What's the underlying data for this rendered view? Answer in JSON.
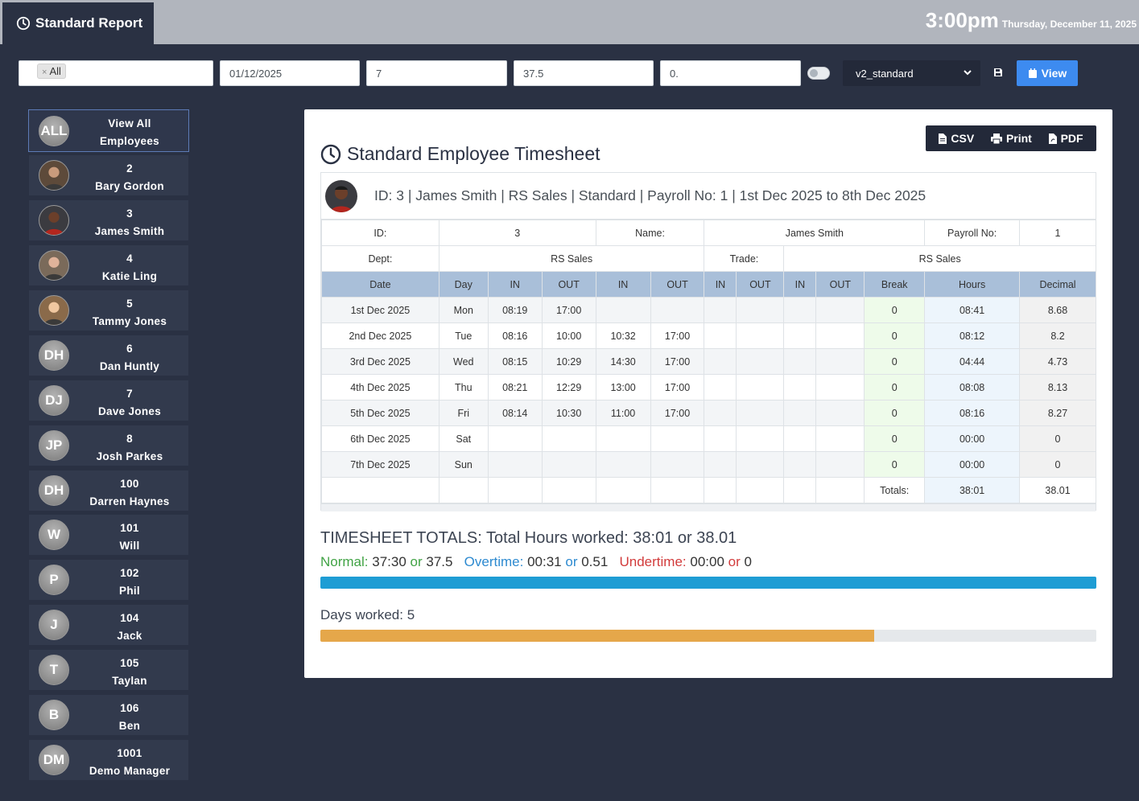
{
  "header": {
    "tab_title": "Standard Report",
    "time": "3:00pm",
    "date": "Thursday, December 11, 2025"
  },
  "filters": {
    "chip": "All",
    "date": "01/12/2025",
    "days": "7",
    "hours": "37.5",
    "field4": "0.",
    "template": "v2_standard",
    "view_label": "View"
  },
  "sidebar": {
    "items": [
      {
        "line1": "View All",
        "line2": "Employees",
        "avatar": "ALL"
      },
      {
        "line1": "2",
        "line2": "Bary Gordon",
        "avatar": ""
      },
      {
        "line1": "3",
        "line2": "James Smith",
        "avatar": ""
      },
      {
        "line1": "4",
        "line2": "Katie Ling",
        "avatar": ""
      },
      {
        "line1": "5",
        "line2": "Tammy Jones",
        "avatar": ""
      },
      {
        "line1": "6",
        "line2": "Dan Huntly",
        "avatar": "DH"
      },
      {
        "line1": "7",
        "line2": "Dave Jones",
        "avatar": "DJ"
      },
      {
        "line1": "8",
        "line2": "Josh Parkes",
        "avatar": "JP"
      },
      {
        "line1": "100",
        "line2": "Darren Haynes",
        "avatar": "DH"
      },
      {
        "line1": "101",
        "line2": "Will",
        "avatar": "W"
      },
      {
        "line1": "102",
        "line2": "Phil",
        "avatar": "P"
      },
      {
        "line1": "104",
        "line2": "Jack",
        "avatar": "J"
      },
      {
        "line1": "105",
        "line2": "Taylan",
        "avatar": "T"
      },
      {
        "line1": "106",
        "line2": "Ben",
        "avatar": "B"
      },
      {
        "line1": "1001",
        "line2": "Demo Manager",
        "avatar": "DM"
      }
    ]
  },
  "export": {
    "csv": "CSV",
    "print": "Print",
    "pdf": "PDF"
  },
  "report": {
    "title": "Standard Employee Timesheet",
    "summary": "ID: 3 | James Smith | RS Sales | Standard | Payroll No: 1 | 1st Dec 2025 to 8th Dec 2025",
    "id_label": "ID:",
    "id_value": "3",
    "name_label": "Name:",
    "name_value": "James Smith",
    "payroll_label": "Payroll No:",
    "payroll_value": "1",
    "dept_label": "Dept:",
    "dept_value": "RS Sales",
    "trade_label": "Trade:",
    "trade_value": "RS Sales",
    "columns": [
      "Date",
      "Day",
      "IN",
      "OUT",
      "IN",
      "OUT",
      "IN",
      "OUT",
      "IN",
      "OUT",
      "Break",
      "Hours",
      "Decimal"
    ],
    "rows": [
      [
        "1st Dec 2025",
        "Mon",
        "08:19",
        "17:00",
        "",
        "",
        "",
        "",
        "",
        "",
        "0",
        "08:41",
        "8.68"
      ],
      [
        "2nd Dec 2025",
        "Tue",
        "08:16",
        "10:00",
        "10:32",
        "17:00",
        "",
        "",
        "",
        "",
        "0",
        "08:12",
        "8.2"
      ],
      [
        "3rd Dec 2025",
        "Wed",
        "08:15",
        "10:29",
        "14:30",
        "17:00",
        "",
        "",
        "",
        "",
        "0",
        "04:44",
        "4.73"
      ],
      [
        "4th Dec 2025",
        "Thu",
        "08:21",
        "12:29",
        "13:00",
        "17:00",
        "",
        "",
        "",
        "",
        "0",
        "08:08",
        "8.13"
      ],
      [
        "5th Dec 2025",
        "Fri",
        "08:14",
        "10:30",
        "11:00",
        "17:00",
        "",
        "",
        "",
        "",
        "0",
        "08:16",
        "8.27"
      ],
      [
        "6th Dec 2025",
        "Sat",
        "",
        "",
        "",
        "",
        "",
        "",
        "",
        "",
        "0",
        "00:00",
        "0"
      ],
      [
        "7th Dec 2025",
        "Sun",
        "",
        "",
        "",
        "",
        "",
        "",
        "",
        "",
        "0",
        "00:00",
        "0"
      ]
    ],
    "totals_label": "Totals:",
    "totals_hours": "38:01",
    "totals_decimal": "38.01"
  },
  "summary": {
    "totals_line": "TIMESHEET TOTALS: Total Hours worked: 38:01 or 38.01",
    "normal_label": "Normal:",
    "normal_hm": "37:30",
    "normal_dec": "37.5",
    "overtime_label": "Overtime:",
    "overtime_hm": "00:31",
    "overtime_dec": "0.51",
    "undertime_label": "Undertime:",
    "undertime_hm": "00:00",
    "undertime_dec": "0",
    "or": "or",
    "hours_progress": 1.0,
    "days_worked": "Days worked: 5",
    "days_progress": 0.714
  },
  "colors": {
    "accent": "#3d8bf0",
    "hours_bar": "#1e9dd4",
    "days_bar": "#e5a74a",
    "normal": "#41a345",
    "overtime": "#2d8ad0",
    "undertime": "#d23b3b"
  }
}
